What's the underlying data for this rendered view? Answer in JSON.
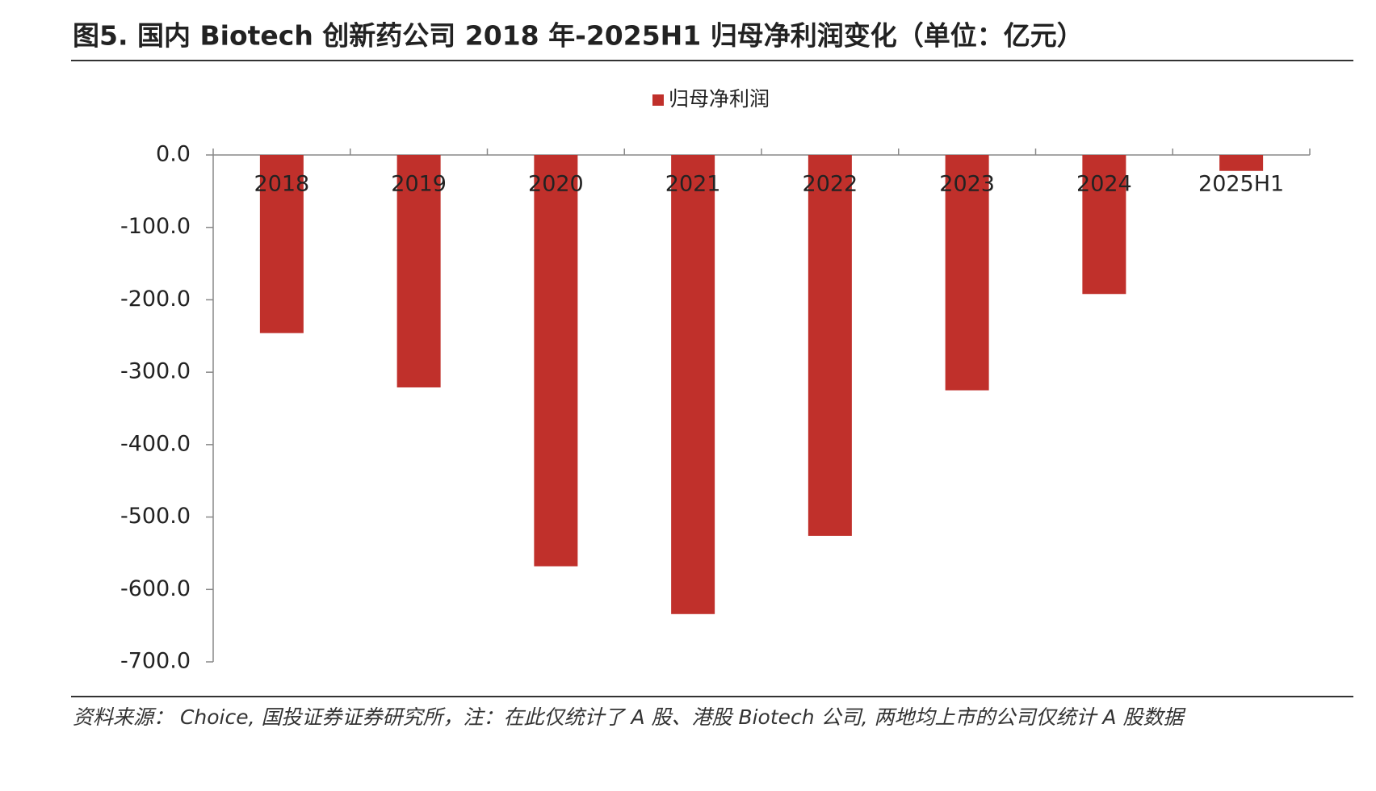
{
  "title": "图5. 国内 Biotech 创新药公司 2018 年-2025H1 归母净利润变化（单位：亿元）",
  "source": "资料来源： Choice, 国投证券证券研究所，注：在此仅统计了 A 股、港股 Biotech 公司, 两地均上市的公司仅统计 A 股数据",
  "chart_data": {
    "type": "bar",
    "categories": [
      "2018",
      "2019",
      "2020",
      "2021",
      "2022",
      "2023",
      "2024",
      "2025H1"
    ],
    "series": [
      {
        "name": "归母净利润",
        "color": "#c0302b",
        "values": [
          -246,
          -321,
          -568,
          -634,
          -526,
          -325,
          -192,
          -22
        ]
      }
    ],
    "ylim": [
      -700,
      0
    ],
    "yticks": [
      {
        "value": 0,
        "label": "0.0"
      },
      {
        "value": -100,
        "label": "-100.0"
      },
      {
        "value": -200,
        "label": "-200.0"
      },
      {
        "value": -300,
        "label": "-300.0"
      },
      {
        "value": -400,
        "label": "-400.0"
      },
      {
        "value": -500,
        "label": "-500.0"
      },
      {
        "value": -600,
        "label": "-600.0"
      },
      {
        "value": -700,
        "label": "-700.0"
      }
    ],
    "legend": "top"
  }
}
